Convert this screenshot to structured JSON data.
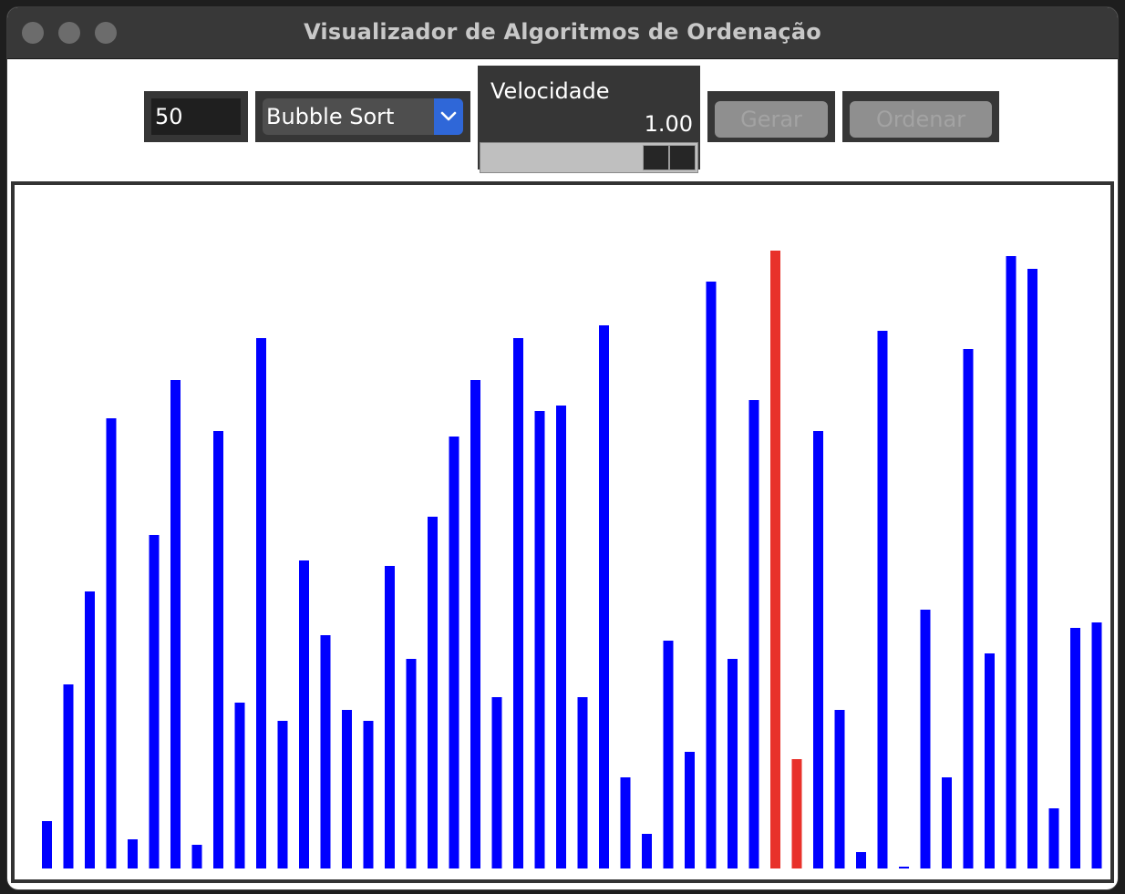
{
  "window": {
    "title": "Visualizador de Algoritmos de Ordenação"
  },
  "controls": {
    "count_value": "50",
    "algorithm_selected": "Bubble Sort",
    "speed_label": "Velocidade",
    "speed_value": "1.00",
    "speed_fraction": 1.0,
    "generate_label": "Gerar",
    "sort_label": "Ordenar"
  },
  "colors": {
    "bar_default": "#0000ff",
    "bar_compare": "#e8312a",
    "accent": "#2f67d8"
  },
  "chart_data": {
    "type": "bar",
    "values": [
      52,
      202,
      304,
      494,
      32,
      366,
      536,
      26,
      480,
      182,
      582,
      162,
      338,
      256,
      174,
      162,
      332,
      230,
      386,
      474,
      536,
      188,
      582,
      502,
      508,
      188,
      596,
      100,
      38,
      250,
      128,
      644,
      230,
      514,
      678,
      120,
      480,
      174,
      18,
      590,
      2,
      284,
      100,
      570,
      236,
      672,
      658,
      66,
      264,
      270
    ],
    "highlighted": [
      34,
      35
    ],
    "ylim": [
      0,
      700
    ]
  }
}
